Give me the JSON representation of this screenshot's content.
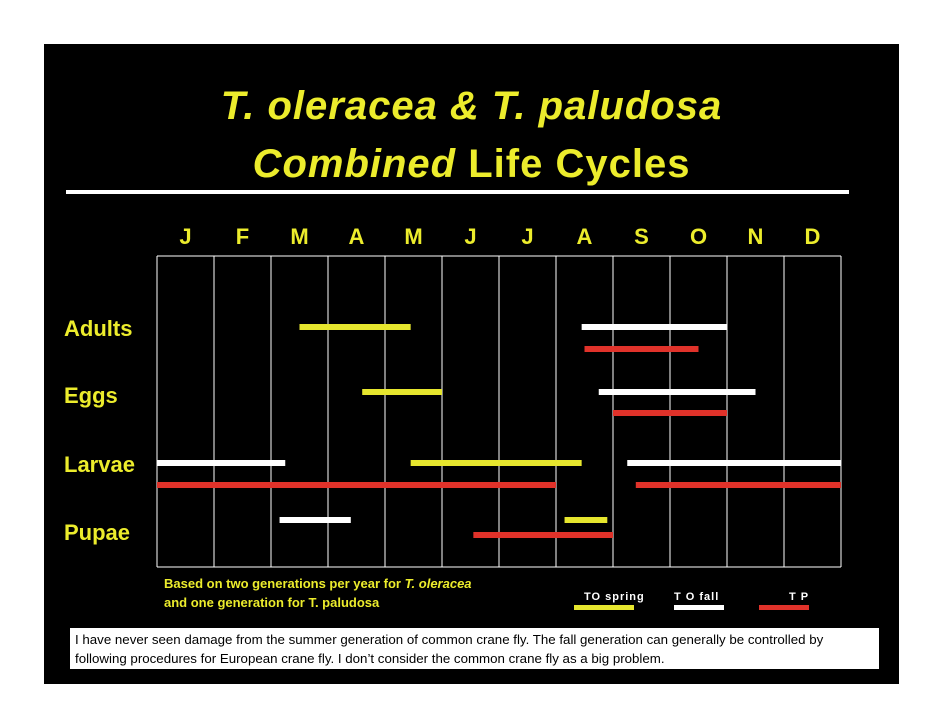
{
  "title": {
    "line1": "T. oleracea & T. paludosa",
    "line2_italic": "Combined",
    "line2_rest": " Life Cycles"
  },
  "colors": {
    "background": "#000000",
    "text_yellow": "#ecec2c",
    "spring_oleracea": "#e6e62e",
    "fall_oleracea": "#ffffff",
    "paludosa": "#e0322a",
    "grid": "#ffffff"
  },
  "chart_data": {
    "type": "gantt",
    "months": [
      "J",
      "F",
      "M",
      "A",
      "M",
      "J",
      "J",
      "A",
      "S",
      "O",
      "N",
      "D"
    ],
    "stages": [
      "Adults",
      "Eggs",
      "Larvae",
      "Pupae"
    ],
    "series": [
      {
        "name": "TO spring",
        "color": "#e6e62e"
      },
      {
        "name": "T O fall",
        "color": "#ffffff"
      },
      {
        "name": "T P",
        "color": "#e0322a"
      }
    ],
    "bars": [
      {
        "stage": "Adults",
        "series": "TO spring",
        "start": 2.5,
        "end": 4.45
      },
      {
        "stage": "Adults",
        "series": "T O fall",
        "start": 7.45,
        "end": 10.0
      },
      {
        "stage": "Adults",
        "series": "T P",
        "start": 7.5,
        "end": 9.5
      },
      {
        "stage": "Eggs",
        "series": "TO spring",
        "start": 3.6,
        "end": 5.0
      },
      {
        "stage": "Eggs",
        "series": "T O fall",
        "start": 7.75,
        "end": 10.5
      },
      {
        "stage": "Eggs",
        "series": "T P",
        "start": 8.0,
        "end": 10.0
      },
      {
        "stage": "Larvae",
        "series": "T O fall",
        "start": 0.0,
        "end": 2.25
      },
      {
        "stage": "Larvae",
        "series": "TO spring",
        "start": 4.45,
        "end": 7.45
      },
      {
        "stage": "Larvae",
        "series": "T O fall",
        "start": 8.25,
        "end": 12.0
      },
      {
        "stage": "Larvae",
        "series": "T P",
        "start": 0.0,
        "end": 7.0
      },
      {
        "stage": "Larvae",
        "series": "T P",
        "start": 8.4,
        "end": 12.0
      },
      {
        "stage": "Pupae",
        "series": "T O fall",
        "start": 2.15,
        "end": 3.4
      },
      {
        "stage": "Pupae",
        "series": "TO spring",
        "start": 7.15,
        "end": 7.9
      },
      {
        "stage": "Pupae",
        "series": "T P",
        "start": 5.55,
        "end": 8.0
      }
    ]
  },
  "footnote": {
    "line1_prefix": "Based on two generations per year for ",
    "line1_italic": "T. oleracea",
    "line2": "and one generation for T. paludosa"
  },
  "note": "I have never seen damage from the summer generation of common crane fly. The fall generation can generally be controlled by following procedures for European crane fly. I don’t consider the common crane fly as a big problem."
}
